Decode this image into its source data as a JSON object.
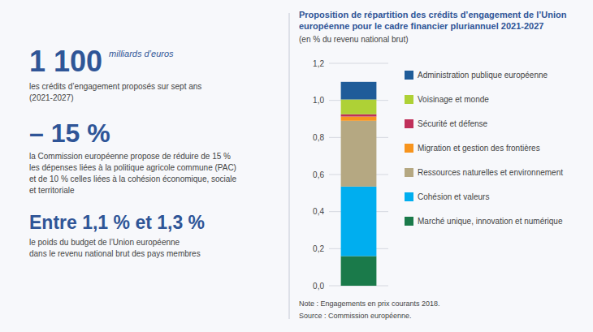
{
  "chart_data": {
    "type": "bar",
    "stacked": true,
    "grid": true,
    "tick_labels": "y",
    "title": "Proposition de répartition des crédits d’engagement de l’Union européenne pour le cadre financier pluriannuel 2021-2027",
    "subtitle": "(en % du revenu national brut)",
    "note": "Note : Engagements en prix courants 2018.",
    "source": "Source : Commission européenne.",
    "annotations": [
      {
        "big": "1 100",
        "small": "milliards d’euros",
        "body": "les crédits d’engagement proposés sur sept ans\n(2021-2027)"
      },
      {
        "big": "– 15 %",
        "body": "la Commission européenne propose de réduire de 15 %\nles dépenses liées à la politique agricole commune (PAC)\net de 10 % celles liées à la cohésion économique, sociale\net territoriale"
      },
      {
        "big": "Entre 1,1 % et 1,3 %",
        "body": "le poids du budget de l’Union européenne\ndans le revenu national brut des pays membres"
      }
    ],
    "categories": [
      null
    ],
    "series": [
      {
        "name": "Marché unique, innovation et numérique",
        "color": "#1a7a4a",
        "values": [
          0.16
        ]
      },
      {
        "name": "Cohésion et valeurs",
        "color": "#00aeef",
        "values": [
          0.375
        ]
      },
      {
        "name": "Ressources naturelles et environnement",
        "color": "#b5a882",
        "values": [
          0.355
        ]
      },
      {
        "name": "Migration et gestion des frontières",
        "color": "#f7941d",
        "values": [
          0.023
        ]
      },
      {
        "name": "Sécurité et défense",
        "color": "#c0305a",
        "values": [
          0.012
        ]
      },
      {
        "name": "Voisinage et monde",
        "color": "#aed136",
        "values": [
          0.08
        ]
      },
      {
        "name": "Administration publique européenne",
        "color": "#1f5c99",
        "values": [
          0.095
        ]
      }
    ],
    "ylim": [
      0.0,
      1.2
    ],
    "yticks": [
      {
        "value": 0.0,
        "label": "0,0"
      },
      {
        "value": 0.2,
        "label": "0,2"
      },
      {
        "value": 0.4,
        "label": "0,4"
      },
      {
        "value": 0.6,
        "label": "0,6"
      },
      {
        "value": 0.8,
        "label": "0,8"
      },
      {
        "value": 1.0,
        "label": "1,0"
      },
      {
        "value": 1.2,
        "label": "1,2"
      }
    ]
  }
}
